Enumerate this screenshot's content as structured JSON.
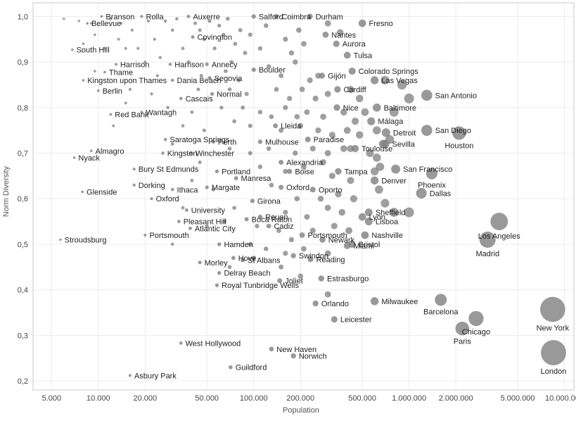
{
  "colors": {
    "point": "#7f7f7f",
    "grid": "#ececec",
    "axis": "#c8c8c8",
    "text": "#222222"
  },
  "chart_data": {
    "type": "scatter",
    "x_scale": "log",
    "xlabel": "Population",
    "ylabel": "Norm Diversity",
    "xlim": [
      3800,
      11500000
    ],
    "ylim": [
      0.18,
      1.03
    ],
    "grid": true,
    "x_ticks": [
      5000,
      10000,
      20000,
      50000,
      100000,
      200000,
      500000,
      1000000,
      2000000,
      5000000,
      10000000
    ],
    "x_tick_labels": [
      "5.000",
      "10.000",
      "20.000",
      "50.000",
      "100.000",
      "200.000",
      "500.000",
      "1.000.000",
      "2.000.000",
      "5.000.000",
      "10.000.000"
    ],
    "y_ticks": [
      0.2,
      0.3,
      0.4,
      0.5,
      0.6,
      0.7,
      0.8,
      0.9,
      1.0
    ],
    "y_tick_labels": [
      "0,2",
      "0,3",
      "0,4",
      "0,5",
      "0,6",
      "0,7",
      "0,8",
      "0,9",
      "1,0"
    ],
    "size_encoding": "population",
    "labeled_points": [
      {
        "name": "London",
        "x": 8500000,
        "y": 0.262
      },
      {
        "name": "New York",
        "x": 8400000,
        "y": 0.357
      },
      {
        "name": "Paris",
        "x": 2200000,
        "y": 0.315
      },
      {
        "name": "Chicago",
        "x": 2700000,
        "y": 0.337
      },
      {
        "name": "Barcelona",
        "x": 1600000,
        "y": 0.378
      },
      {
        "name": "Madrid",
        "x": 3200000,
        "y": 0.51
      },
      {
        "name": "Los Angeles",
        "x": 3800000,
        "y": 0.55
      },
      {
        "name": "Milwaukee",
        "x": 600000,
        "y": 0.375
      },
      {
        "name": "Leicester",
        "x": 330000,
        "y": 0.335
      },
      {
        "name": "Orlando",
        "x": 250000,
        "y": 0.37
      },
      {
        "name": "Estrasburgo",
        "x": 272000,
        "y": 0.425
      },
      {
        "name": "Reading",
        "x": 232000,
        "y": 0.467
      },
      {
        "name": "Joliet",
        "x": 147000,
        "y": 0.42
      },
      {
        "name": "Miami",
        "x": 400000,
        "y": 0.497
      },
      {
        "name": "Bristol",
        "x": 430000,
        "y": 0.5
      },
      {
        "name": "Newark",
        "x": 277000,
        "y": 0.51
      },
      {
        "name": "Portsmouth",
        "x": 205000,
        "y": 0.52
      },
      {
        "name": "Nashville",
        "x": 520000,
        "y": 0.52
      },
      {
        "name": "Lyon",
        "x": 500000,
        "y": 0.56
      },
      {
        "name": "Lisboa",
        "x": 550000,
        "y": 0.55
      },
      {
        "name": "Dallas",
        "x": 1200000,
        "y": 0.612
      },
      {
        "name": "Sheffield",
        "x": 550000,
        "y": 0.57
      },
      {
        "name": "Denver",
        "x": 600000,
        "y": 0.64
      },
      {
        "name": "Tampa",
        "x": 350000,
        "y": 0.66
      },
      {
        "name": "Phoenix",
        "x": 1400000,
        "y": 0.655
      },
      {
        "name": "San Francisco",
        "x": 820000,
        "y": 0.665
      },
      {
        "name": "Sevilla",
        "x": 700000,
        "y": 0.72
      },
      {
        "name": "San Diego",
        "x": 1300000,
        "y": 0.75
      },
      {
        "name": "Houston",
        "x": 2100000,
        "y": 0.744
      },
      {
        "name": "Detroit",
        "x": 710000,
        "y": 0.745
      },
      {
        "name": "Málaga",
        "x": 570000,
        "y": 0.77
      },
      {
        "name": "Baltimore",
        "x": 620000,
        "y": 0.8
      },
      {
        "name": "San Antonio",
        "x": 1300000,
        "y": 0.827
      },
      {
        "name": "Nice",
        "x": 343000,
        "y": 0.8
      },
      {
        "name": "Cardiff",
        "x": 346000,
        "y": 0.84
      },
      {
        "name": "Las Vegas",
        "x": 600000,
        "y": 0.86
      },
      {
        "name": "Colorado Springs",
        "x": 430000,
        "y": 0.88
      },
      {
        "name": "Gijón",
        "x": 275000,
        "y": 0.87
      },
      {
        "name": "Boulder",
        "x": 100000,
        "y": 0.883
      },
      {
        "name": "Tulsa",
        "x": 400000,
        "y": 0.915
      },
      {
        "name": "Aurora",
        "x": 340000,
        "y": 0.94
      },
      {
        "name": "Nantes",
        "x": 290000,
        "y": 0.96
      },
      {
        "name": "Fresno",
        "x": 500000,
        "y": 0.985
      },
      {
        "name": "Durham",
        "x": 230000,
        "y": 1.0
      },
      {
        "name": "Salford",
        "x": 100000,
        "y": 1.0
      },
      {
        "name": "Coimbra",
        "x": 140000,
        "y": 1.0
      },
      {
        "name": "Auxerre",
        "x": 38000,
        "y": 1.0
      },
      {
        "name": "Rolla",
        "x": 19000,
        "y": 1.0
      },
      {
        "name": "Branson",
        "x": 10500,
        "y": 1.0
      },
      {
        "name": "Bellevue",
        "x": 8500,
        "y": 0.985
      },
      {
        "name": "Covington",
        "x": 40500,
        "y": 0.955
      },
      {
        "name": "South Hill",
        "x": 6800,
        "y": 0.927
      },
      {
        "name": "Harrison",
        "x": 13000,
        "y": 0.895
      },
      {
        "name": "Harrison",
        "x": 29000,
        "y": 0.895
      },
      {
        "name": "Annecy",
        "x": 50000,
        "y": 0.895
      },
      {
        "name": "Thame",
        "x": 11000,
        "y": 0.878
      },
      {
        "name": "Kingston upon Thames",
        "x": 8000,
        "y": 0.86
      },
      {
        "name": "Dania Beach",
        "x": 30000,
        "y": 0.86
      },
      {
        "name": "Segovia",
        "x": 52000,
        "y": 0.865
      },
      {
        "name": "Berlin",
        "x": 10000,
        "y": 0.837
      },
      {
        "name": "Normal",
        "x": 54000,
        "y": 0.83
      },
      {
        "name": "Cascais",
        "x": 34000,
        "y": 0.82
      },
      {
        "name": "Wantagh",
        "x": 19000,
        "y": 0.79
      },
      {
        "name": "Red Bank",
        "x": 12000,
        "y": 0.785
      },
      {
        "name": "Lleida",
        "x": 138000,
        "y": 0.76
      },
      {
        "name": "Paradise",
        "x": 223000,
        "y": 0.73
      },
      {
        "name": "Saratoga Springs",
        "x": 27000,
        "y": 0.73
      },
      {
        "name": "Perth",
        "x": 55000,
        "y": 0.725
      },
      {
        "name": "Mulhouse",
        "x": 110000,
        "y": 0.725
      },
      {
        "name": "Almagro",
        "x": 9000,
        "y": 0.705
      },
      {
        "name": "Nyack",
        "x": 7000,
        "y": 0.69
      },
      {
        "name": "Toulouse",
        "x": 450000,
        "y": 0.71
      },
      {
        "name": "Kingston",
        "x": 26000,
        "y": 0.7
      },
      {
        "name": "Winchester",
        "x": 39500,
        "y": 0.7
      },
      {
        "name": "Alexandria",
        "x": 150000,
        "y": 0.68
      },
      {
        "name": "Bury St Edmunds",
        "x": 17000,
        "y": 0.665
      },
      {
        "name": "Portland",
        "x": 58000,
        "y": 0.66
      },
      {
        "name": "Boise",
        "x": 170000,
        "y": 0.66
      },
      {
        "name": "Manresa",
        "x": 77000,
        "y": 0.645
      },
      {
        "name": "Dorking",
        "x": 17000,
        "y": 0.63
      },
      {
        "name": "Ithaca",
        "x": 30000,
        "y": 0.62
      },
      {
        "name": "Margate",
        "x": 50000,
        "y": 0.625
      },
      {
        "name": "Oporto",
        "x": 240000,
        "y": 0.62
      },
      {
        "name": "Oxford",
        "x": 150000,
        "y": 0.625
      },
      {
        "name": "Glenside",
        "x": 7900,
        "y": 0.615
      },
      {
        "name": "Oxford",
        "x": 22000,
        "y": 0.6
      },
      {
        "name": "Girona",
        "x": 98000,
        "y": 0.595
      },
      {
        "name": "University",
        "x": 37000,
        "y": 0.575
      },
      {
        "name": "Rouen",
        "x": 110000,
        "y": 0.56
      },
      {
        "name": "Pleasant Hill",
        "x": 33000,
        "y": 0.55
      },
      {
        "name": "Boca Raton",
        "x": 90000,
        "y": 0.555
      },
      {
        "name": "Atlantic City",
        "x": 39000,
        "y": 0.535
      },
      {
        "name": "Cadiz",
        "x": 125000,
        "y": 0.54
      },
      {
        "name": "Portsmouth",
        "x": 20000,
        "y": 0.52
      },
      {
        "name": "Stroudsburg",
        "x": 5700,
        "y": 0.51
      },
      {
        "name": "Hamden",
        "x": 60000,
        "y": 0.5
      },
      {
        "name": "Swindon",
        "x": 180000,
        "y": 0.475
      },
      {
        "name": "Morley",
        "x": 45000,
        "y": 0.46
      },
      {
        "name": "Hove",
        "x": 74000,
        "y": 0.47
      },
      {
        "name": "St Albans",
        "x": 85000,
        "y": 0.465
      },
      {
        "name": "Delray Beach",
        "x": 60000,
        "y": 0.437
      },
      {
        "name": "Royal Tunbridge Wells",
        "x": 58000,
        "y": 0.41
      },
      {
        "name": "West Hollywood",
        "x": 34000,
        "y": 0.283
      },
      {
        "name": "New Haven",
        "x": 130000,
        "y": 0.27
      },
      {
        "name": "Norwich",
        "x": 180000,
        "y": 0.255
      },
      {
        "name": "Guildford",
        "x": 71000,
        "y": 0.23
      },
      {
        "name": "Asbury Park",
        "x": 16000,
        "y": 0.212
      }
    ],
    "unlabeled_points": [
      {
        "x": 6000,
        "y": 0.995
      },
      {
        "x": 7500,
        "y": 0.99
      },
      {
        "x": 9000,
        "y": 0.985
      },
      {
        "x": 9500,
        "y": 0.96
      },
      {
        "x": 12000,
        "y": 0.995
      },
      {
        "x": 14000,
        "y": 0.985
      },
      {
        "x": 15000,
        "y": 0.93
      },
      {
        "x": 16500,
        "y": 0.97
      },
      {
        "x": 18000,
        "y": 0.93
      },
      {
        "x": 21000,
        "y": 0.99
      },
      {
        "x": 23000,
        "y": 0.95
      },
      {
        "x": 25000,
        "y": 0.91
      },
      {
        "x": 27000,
        "y": 0.99
      },
      {
        "x": 30000,
        "y": 0.97
      },
      {
        "x": 32000,
        "y": 0.995
      },
      {
        "x": 35000,
        "y": 0.93
      },
      {
        "x": 42000,
        "y": 0.985
      },
      {
        "x": 45000,
        "y": 0.97
      },
      {
        "x": 48000,
        "y": 0.95
      },
      {
        "x": 52000,
        "y": 0.99
      },
      {
        "x": 56000,
        "y": 0.93
      },
      {
        "x": 60000,
        "y": 0.98
      },
      {
        "x": 64000,
        "y": 0.96
      },
      {
        "x": 68000,
        "y": 0.995
      },
      {
        "x": 72000,
        "y": 0.9
      },
      {
        "x": 76000,
        "y": 0.94
      },
      {
        "x": 82000,
        "y": 0.97
      },
      {
        "x": 88000,
        "y": 0.92
      },
      {
        "x": 95000,
        "y": 0.96
      },
      {
        "x": 110000,
        "y": 0.93
      },
      {
        "x": 120000,
        "y": 0.98
      },
      {
        "x": 160000,
        "y": 0.95
      },
      {
        "x": 175000,
        "y": 0.92
      },
      {
        "x": 195000,
        "y": 0.97
      },
      {
        "x": 210000,
        "y": 0.94
      },
      {
        "x": 300000,
        "y": 0.985
      },
      {
        "x": 360000,
        "y": 0.965
      },
      {
        "x": 8000,
        "y": 0.94
      },
      {
        "x": 11000,
        "y": 0.93
      },
      {
        "x": 13500,
        "y": 0.95
      },
      {
        "x": 9500,
        "y": 0.88
      },
      {
        "x": 20000,
        "y": 0.9
      },
      {
        "x": 24000,
        "y": 0.87
      },
      {
        "x": 38000,
        "y": 0.9
      },
      {
        "x": 46000,
        "y": 0.87
      },
      {
        "x": 66000,
        "y": 0.88
      },
      {
        "x": 80000,
        "y": 0.86
      },
      {
        "x": 125000,
        "y": 0.89
      },
      {
        "x": 150000,
        "y": 0.87
      },
      {
        "x": 185000,
        "y": 0.9
      },
      {
        "x": 230000,
        "y": 0.86
      },
      {
        "x": 260000,
        "y": 0.87
      },
      {
        "x": 16000,
        "y": 0.84
      },
      {
        "x": 22000,
        "y": 0.83
      },
      {
        "x": 44000,
        "y": 0.84
      },
      {
        "x": 70000,
        "y": 0.84
      },
      {
        "x": 90000,
        "y": 0.83
      },
      {
        "x": 140000,
        "y": 0.84
      },
      {
        "x": 170000,
        "y": 0.82
      },
      {
        "x": 205000,
        "y": 0.84
      },
      {
        "x": 250000,
        "y": 0.82
      },
      {
        "x": 300000,
        "y": 0.83
      },
      {
        "x": 420000,
        "y": 0.84
      },
      {
        "x": 480000,
        "y": 0.82
      },
      {
        "x": 700000,
        "y": 0.86
      },
      {
        "x": 900000,
        "y": 0.85
      },
      {
        "x": 1000000,
        "y": 0.82
      },
      {
        "x": 15000,
        "y": 0.81
      },
      {
        "x": 28000,
        "y": 0.8
      },
      {
        "x": 40000,
        "y": 0.79
      },
      {
        "x": 62000,
        "y": 0.8
      },
      {
        "x": 85000,
        "y": 0.8
      },
      {
        "x": 110000,
        "y": 0.79
      },
      {
        "x": 130000,
        "y": 0.78
      },
      {
        "x": 160000,
        "y": 0.8
      },
      {
        "x": 190000,
        "y": 0.78
      },
      {
        "x": 220000,
        "y": 0.79
      },
      {
        "x": 280000,
        "y": 0.78
      },
      {
        "x": 380000,
        "y": 0.79
      },
      {
        "x": 450000,
        "y": 0.77
      },
      {
        "x": 520000,
        "y": 0.79
      },
      {
        "x": 800000,
        "y": 0.79
      },
      {
        "x": 12500,
        "y": 0.76
      },
      {
        "x": 35000,
        "y": 0.76
      },
      {
        "x": 48000,
        "y": 0.75
      },
      {
        "x": 75000,
        "y": 0.77
      },
      {
        "x": 95000,
        "y": 0.76
      },
      {
        "x": 150000,
        "y": 0.75
      },
      {
        "x": 200000,
        "y": 0.76
      },
      {
        "x": 260000,
        "y": 0.75
      },
      {
        "x": 320000,
        "y": 0.74
      },
      {
        "x": 400000,
        "y": 0.75
      },
      {
        "x": 480000,
        "y": 0.74
      },
      {
        "x": 620000,
        "y": 0.75
      },
      {
        "x": 30000,
        "y": 0.72
      },
      {
        "x": 70000,
        "y": 0.71
      },
      {
        "x": 95000,
        "y": 0.7
      },
      {
        "x": 125000,
        "y": 0.71
      },
      {
        "x": 185000,
        "y": 0.7
      },
      {
        "x": 240000,
        "y": 0.71
      },
      {
        "x": 300000,
        "y": 0.7
      },
      {
        "x": 380000,
        "y": 0.71
      },
      {
        "x": 420000,
        "y": 0.71
      },
      {
        "x": 560000,
        "y": 0.7
      },
      {
        "x": 620000,
        "y": 0.69
      },
      {
        "x": 680000,
        "y": 0.72
      },
      {
        "x": 750000,
        "y": 0.73
      },
      {
        "x": 45000,
        "y": 0.68
      },
      {
        "x": 110000,
        "y": 0.67
      },
      {
        "x": 160000,
        "y": 0.66
      },
      {
        "x": 210000,
        "y": 0.67
      },
      {
        "x": 280000,
        "y": 0.68
      },
      {
        "x": 320000,
        "y": 0.65
      },
      {
        "x": 420000,
        "y": 0.64
      },
      {
        "x": 600000,
        "y": 0.66
      },
      {
        "x": 650000,
        "y": 0.67
      },
      {
        "x": 40000,
        "y": 0.64
      },
      {
        "x": 55000,
        "y": 0.62
      },
      {
        "x": 130000,
        "y": 0.63
      },
      {
        "x": 190000,
        "y": 0.6
      },
      {
        "x": 270000,
        "y": 0.6
      },
      {
        "x": 350000,
        "y": 0.61
      },
      {
        "x": 440000,
        "y": 0.6
      },
      {
        "x": 640000,
        "y": 0.62
      },
      {
        "x": 700000,
        "y": 0.59
      },
      {
        "x": 35000,
        "y": 0.58
      },
      {
        "x": 75000,
        "y": 0.58
      },
      {
        "x": 160000,
        "y": 0.57
      },
      {
        "x": 220000,
        "y": 0.56
      },
      {
        "x": 300000,
        "y": 0.58
      },
      {
        "x": 370000,
        "y": 0.57
      },
      {
        "x": 800000,
        "y": 0.57
      },
      {
        "x": 1000000,
        "y": 0.57
      },
      {
        "x": 50000,
        "y": 0.54
      },
      {
        "x": 65000,
        "y": 0.55
      },
      {
        "x": 105000,
        "y": 0.54
      },
      {
        "x": 145000,
        "y": 0.53
      },
      {
        "x": 175000,
        "y": 0.51
      },
      {
        "x": 240000,
        "y": 0.53
      },
      {
        "x": 330000,
        "y": 0.54
      },
      {
        "x": 410000,
        "y": 0.53
      },
      {
        "x": 30000,
        "y": 0.5
      },
      {
        "x": 95000,
        "y": 0.5
      },
      {
        "x": 120000,
        "y": 0.49
      },
      {
        "x": 160000,
        "y": 0.48
      },
      {
        "x": 210000,
        "y": 0.49
      },
      {
        "x": 300000,
        "y": 0.48
      },
      {
        "x": 70000,
        "y": 0.45
      },
      {
        "x": 100000,
        "y": 0.47
      },
      {
        "x": 150000,
        "y": 0.45
      },
      {
        "x": 300000,
        "y": 0.39
      },
      {
        "x": 200000,
        "y": 0.43
      }
    ]
  }
}
